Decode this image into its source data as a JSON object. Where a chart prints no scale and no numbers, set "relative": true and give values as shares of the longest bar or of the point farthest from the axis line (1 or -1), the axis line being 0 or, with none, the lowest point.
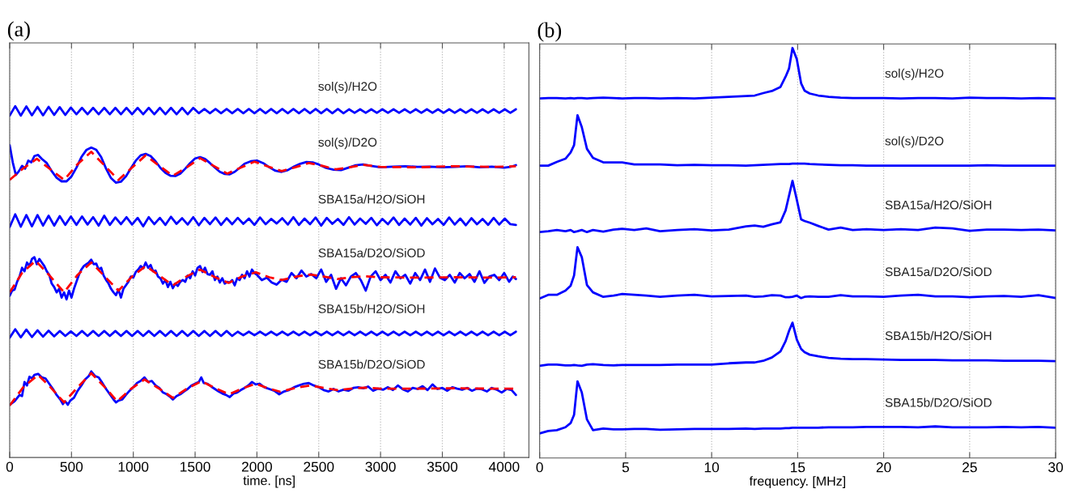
{
  "chart_data": [
    {
      "type": "line",
      "title": "(a)",
      "xlabel": "time. [ns]",
      "relative": true,
      "grid": "x",
      "tick_labels": "x",
      "xlim": [
        0,
        4200
      ],
      "xticks": [
        0,
        500,
        1000,
        1500,
        2000,
        2500,
        3000,
        3500,
        4000
      ],
      "x": [
        0,
        45,
        90,
        135,
        180,
        225,
        270,
        315,
        360,
        405,
        450,
        495,
        540,
        585,
        630,
        675,
        720,
        765,
        810,
        855,
        900,
        945,
        990,
        1035,
        1080,
        1125,
        1170,
        1215,
        1260,
        1305,
        1350,
        1395,
        1440,
        1485,
        1530,
        1575,
        1620,
        1665,
        1710,
        1755,
        1800,
        1845,
        1890,
        1935,
        1980,
        2025,
        2070,
        2115,
        2160,
        2205,
        2250,
        2295,
        2340,
        2385,
        2430,
        2475,
        2520,
        2565,
        2610,
        2655,
        2700,
        2745,
        2790,
        2835,
        2880,
        2925,
        2970,
        3015,
        3060,
        3105,
        3150,
        3195,
        3240,
        3285,
        3330,
        3375,
        3420,
        3465,
        3510,
        3555,
        3600,
        3645,
        3690,
        3735,
        3780,
        3825,
        3870,
        3915,
        3960,
        4005,
        4050,
        4095
      ],
      "series": [
        {
          "name": "sol(s)/H2O",
          "color": "#0000ff",
          "values": [
            0.973,
            1.0,
            0.973,
            0.999,
            0.974,
            0.998,
            0.974,
            0.998,
            0.975,
            0.997,
            0.975,
            0.996,
            0.977,
            0.995,
            0.977,
            0.995,
            0.977,
            0.995,
            0.977,
            0.995,
            0.977,
            0.995,
            0.977,
            0.995,
            0.977,
            0.995,
            0.977,
            0.995,
            0.977,
            0.995,
            0.977,
            0.995,
            0.977,
            0.995,
            0.98,
            0.992,
            0.98,
            0.992,
            0.98,
            0.992,
            0.98,
            0.992,
            0.98,
            0.992,
            0.98,
            0.992,
            0.98,
            0.992,
            0.98,
            0.992,
            0.98,
            0.992,
            0.98,
            0.992,
            0.98,
            0.992,
            0.98,
            0.992,
            0.98,
            0.992,
            0.98,
            0.991,
            0.981,
            0.991,
            0.981,
            0.991,
            0.981,
            0.991,
            0.981,
            0.991,
            0.981,
            0.991,
            0.981,
            0.991,
            0.981,
            0.991,
            0.981,
            0.991,
            0.981,
            0.991,
            0.981,
            0.991,
            0.981,
            0.991,
            0.981,
            0.991,
            0.981,
            0.991,
            0.981,
            0.991,
            0.981,
            0.991
          ]
        },
        {
          "name": "sol(s)/D2O",
          "color": "#0000ff",
          "x": [
            0,
            25,
            50,
            75,
            100,
            125,
            150,
            175,
            200,
            230,
            260,
            300,
            340,
            380,
            420,
            460,
            500,
            540,
            580,
            620,
            660,
            700,
            740,
            780,
            820,
            860,
            900,
            940,
            980,
            1020,
            1060,
            1100,
            1140,
            1180,
            1220,
            1260,
            1300,
            1340,
            1380,
            1420,
            1460,
            1500,
            1540,
            1580,
            1620,
            1660,
            1700,
            1740,
            1780,
            1820,
            1860,
            1900,
            1950,
            2000,
            2050,
            2100,
            2150,
            2200,
            2250,
            2300,
            2350,
            2400,
            2450,
            2500,
            2560,
            2620,
            2680,
            2740,
            2800,
            2860,
            2920,
            3000,
            3100,
            3200,
            3300,
            3400,
            3500,
            3600,
            3700,
            3800,
            3900,
            4000,
            4050,
            4095
          ],
          "values": [
            0.889,
            0.84,
            0.804,
            0.815,
            0.83,
            0.822,
            0.845,
            0.84,
            0.858,
            0.861,
            0.85,
            0.838,
            0.815,
            0.796,
            0.786,
            0.786,
            0.8,
            0.825,
            0.855,
            0.875,
            0.882,
            0.876,
            0.855,
            0.822,
            0.795,
            0.782,
            0.785,
            0.8,
            0.823,
            0.845,
            0.86,
            0.864,
            0.858,
            0.843,
            0.824,
            0.81,
            0.802,
            0.801,
            0.808,
            0.822,
            0.838,
            0.851,
            0.855,
            0.85,
            0.838,
            0.825,
            0.813,
            0.807,
            0.806,
            0.813,
            0.824,
            0.836,
            0.843,
            0.845,
            0.838,
            0.826,
            0.816,
            0.813,
            0.818,
            0.828,
            0.836,
            0.841,
            0.84,
            0.834,
            0.824,
            0.819,
            0.818,
            0.825,
            0.832,
            0.834,
            0.83,
            0.826,
            0.828,
            0.829,
            0.827,
            0.828,
            0.826,
            0.827,
            0.829,
            0.826,
            0.828,
            0.825,
            0.827,
            0.832
          ]
        },
        {
          "color": "#ff0000",
          "line_style": "dashed",
          "x": [
            0,
            100,
            220,
            330,
            440,
            550,
            660,
            770,
            880,
            990,
            1100,
            1210,
            1320,
            1430,
            1540,
            1650,
            1760,
            1870,
            1980,
            2090,
            2200,
            2310,
            2420,
            2530,
            2640,
            2750,
            2860,
            3000,
            3300,
            3600,
            3900,
            4095
          ],
          "values": [
            0.79,
            0.82,
            0.85,
            0.82,
            0.79,
            0.835,
            0.87,
            0.83,
            0.79,
            0.825,
            0.86,
            0.83,
            0.802,
            0.825,
            0.852,
            0.83,
            0.808,
            0.825,
            0.842,
            0.828,
            0.815,
            0.826,
            0.838,
            0.83,
            0.82,
            0.826,
            0.833,
            0.827,
            0.826,
            0.829,
            0.827,
            0.829
          ]
        },
        {
          "name": "SBA15a/H2O/SiOH",
          "color": "#0000ff",
          "values": [
            0.656,
            0.692,
            0.657,
            0.69,
            0.658,
            0.69,
            0.66,
            0.688,
            0.66,
            0.687,
            0.662,
            0.686,
            0.662,
            0.686,
            0.663,
            0.684,
            0.66,
            0.688,
            0.662,
            0.683,
            0.664,
            0.684,
            0.663,
            0.682,
            0.658,
            0.684,
            0.664,
            0.682,
            0.662,
            0.685,
            0.665,
            0.681,
            0.663,
            0.684,
            0.661,
            0.682,
            0.664,
            0.683,
            0.662,
            0.681,
            0.664,
            0.682,
            0.665,
            0.68,
            0.662,
            0.683,
            0.664,
            0.679,
            0.666,
            0.681,
            0.663,
            0.684,
            0.662,
            0.68,
            0.664,
            0.683,
            0.66,
            0.682,
            0.665,
            0.679,
            0.662,
            0.684,
            0.663,
            0.68,
            0.665,
            0.682,
            0.661,
            0.679,
            0.664,
            0.683,
            0.662,
            0.68,
            0.663,
            0.682,
            0.66,
            0.681,
            0.664,
            0.679,
            0.662,
            0.683,
            0.663,
            0.68,
            0.661,
            0.681,
            0.664,
            0.679,
            0.662,
            0.682,
            0.663,
            0.68,
            0.664,
            0.662
          ]
        },
        {
          "name": "SBA15a/D2O/SiOD",
          "color": "#0000ff",
          "x": [
            0,
            20,
            40,
            60,
            80,
            100,
            120,
            140,
            160,
            180,
            200,
            220,
            240,
            260,
            280,
            300,
            320,
            340,
            360,
            380,
            400,
            420,
            440,
            460,
            480,
            500,
            520,
            540,
            560,
            580,
            600,
            620,
            640,
            660,
            680,
            700,
            720,
            740,
            760,
            780,
            800,
            820,
            840,
            860,
            880,
            900,
            920,
            940,
            960,
            980,
            1000,
            1020,
            1040,
            1060,
            1080,
            1100,
            1120,
            1140,
            1160,
            1180,
            1200,
            1220,
            1240,
            1260,
            1280,
            1300,
            1320,
            1340,
            1360,
            1380,
            1400,
            1420,
            1440,
            1460,
            1480,
            1500,
            1520,
            1540,
            1560,
            1580,
            1600,
            1620,
            1640,
            1660,
            1680,
            1700,
            1720,
            1740,
            1760,
            1780,
            1800,
            1820,
            1840,
            1860,
            1880,
            1900,
            1920,
            1940,
            1960,
            1980,
            2000,
            2040,
            2080,
            2120,
            2160,
            2200,
            2240,
            2280,
            2320,
            2360,
            2400,
            2440,
            2480,
            2520,
            2560,
            2600,
            2640,
            2680,
            2720,
            2760,
            2800,
            2840,
            2880,
            2920,
            2960,
            3000,
            3040,
            3080,
            3120,
            3160,
            3200,
            3240,
            3280,
            3320,
            3360,
            3400,
            3440,
            3480,
            3520,
            3560,
            3600,
            3640,
            3680,
            3720,
            3760,
            3800,
            3840,
            3880,
            3920,
            3960,
            4000,
            4040,
            4070,
            4095
          ],
          "values": [
            0.46,
            0.475,
            0.478,
            0.5,
            0.515,
            0.54,
            0.53,
            0.555,
            0.545,
            0.565,
            0.57,
            0.55,
            0.565,
            0.555,
            0.545,
            0.53,
            0.52,
            0.495,
            0.485,
            0.47,
            0.48,
            0.455,
            0.47,
            0.45,
            0.475,
            0.455,
            0.48,
            0.5,
            0.52,
            0.535,
            0.545,
            0.55,
            0.555,
            0.563,
            0.55,
            0.552,
            0.535,
            0.54,
            0.518,
            0.505,
            0.495,
            0.48,
            0.47,
            0.462,
            0.478,
            0.455,
            0.48,
            0.49,
            0.5,
            0.515,
            0.512,
            0.528,
            0.535,
            0.545,
            0.538,
            0.555,
            0.54,
            0.548,
            0.53,
            0.532,
            0.515,
            0.51,
            0.495,
            0.505,
            0.485,
            0.5,
            0.482,
            0.495,
            0.488,
            0.5,
            0.505,
            0.5,
            0.518,
            0.51,
            0.53,
            0.518,
            0.54,
            0.545,
            0.528,
            0.54,
            0.522,
            0.52,
            0.53,
            0.505,
            0.515,
            0.498,
            0.51,
            0.495,
            0.5,
            0.498,
            0.505,
            0.49,
            0.51,
            0.505,
            0.52,
            0.51,
            0.53,
            0.515,
            0.535,
            0.525,
            0.52,
            0.505,
            0.512,
            0.498,
            0.492,
            0.506,
            0.5,
            0.525,
            0.51,
            0.532,
            0.515,
            0.522,
            0.51,
            0.535,
            0.5,
            0.52,
            0.48,
            0.51,
            0.49,
            0.515,
            0.525,
            0.505,
            0.475,
            0.515,
            0.53,
            0.505,
            0.52,
            0.498,
            0.53,
            0.51,
            0.52,
            0.495,
            0.525,
            0.505,
            0.535,
            0.5,
            0.538,
            0.512,
            0.505,
            0.52,
            0.498,
            0.525,
            0.51,
            0.522,
            0.5,
            0.53,
            0.497,
            0.515,
            0.52,
            0.505,
            0.525,
            0.5,
            0.515,
            0.508
          ]
        },
        {
          "color": "#ff0000",
          "line_style": "dashed",
          "x": [
            0,
            100,
            210,
            330,
            440,
            550,
            660,
            770,
            880,
            990,
            1100,
            1210,
            1320,
            1430,
            1540,
            1650,
            1770,
            1880,
            1990,
            2100,
            2200,
            2320,
            2430,
            2540,
            2650,
            2760,
            2870,
            3000,
            3300,
            3600,
            3900,
            4095
          ],
          "values": [
            0.47,
            0.525,
            0.56,
            0.515,
            0.47,
            0.52,
            0.555,
            0.515,
            0.475,
            0.515,
            0.545,
            0.518,
            0.49,
            0.515,
            0.535,
            0.515,
            0.497,
            0.515,
            0.527,
            0.513,
            0.505,
            0.515,
            0.521,
            0.515,
            0.508,
            0.513,
            0.516,
            0.513,
            0.512,
            0.513,
            0.512,
            0.513
          ]
        },
        {
          "name": "SBA15b/H2O/SiOH",
          "color": "#0000ff",
          "values": [
            0.341,
            0.365,
            0.342,
            0.364,
            0.343,
            0.362,
            0.344,
            0.361,
            0.345,
            0.36,
            0.346,
            0.359,
            0.346,
            0.36,
            0.346,
            0.36,
            0.346,
            0.36,
            0.346,
            0.36,
            0.346,
            0.36,
            0.346,
            0.36,
            0.346,
            0.36,
            0.346,
            0.36,
            0.346,
            0.36,
            0.346,
            0.36,
            0.346,
            0.36,
            0.346,
            0.36,
            0.346,
            0.36,
            0.346,
            0.36,
            0.346,
            0.358,
            0.348,
            0.358,
            0.348,
            0.358,
            0.348,
            0.358,
            0.348,
            0.358,
            0.348,
            0.358,
            0.348,
            0.358,
            0.348,
            0.358,
            0.348,
            0.358,
            0.348,
            0.358,
            0.348,
            0.358,
            0.348,
            0.358,
            0.348,
            0.358,
            0.348,
            0.358,
            0.348,
            0.358,
            0.348,
            0.358,
            0.348,
            0.358,
            0.348,
            0.358,
            0.348,
            0.358,
            0.348,
            0.358,
            0.348,
            0.358,
            0.348,
            0.358,
            0.348,
            0.358,
            0.348,
            0.358,
            0.348,
            0.358,
            0.348,
            0.358
          ]
        },
        {
          "name": "SBA15b/D2O/SiOD",
          "color": "#0000ff",
          "x": [
            0,
            40,
            80,
            100,
            120,
            140,
            160,
            180,
            200,
            230,
            260,
            290,
            320,
            350,
            380,
            410,
            430,
            450,
            470,
            490,
            520,
            550,
            580,
            610,
            640,
            660,
            690,
            720,
            750,
            780,
            810,
            840,
            860,
            880,
            910,
            940,
            970,
            1000,
            1030,
            1060,
            1090,
            1120,
            1150,
            1180,
            1210,
            1240,
            1270,
            1300,
            1320,
            1350,
            1380,
            1410,
            1440,
            1470,
            1500,
            1530,
            1550,
            1570,
            1600,
            1630,
            1660,
            1690,
            1720,
            1750,
            1780,
            1810,
            1840,
            1870,
            1900,
            1930,
            1960,
            1990,
            2020,
            2060,
            2100,
            2140,
            2180,
            2220,
            2260,
            2300,
            2340,
            2380,
            2420,
            2460,
            2500,
            2540,
            2580,
            2620,
            2660,
            2700,
            2740,
            2780,
            2820,
            2860,
            2900,
            2940,
            2980,
            3020,
            3060,
            3100,
            3140,
            3180,
            3220,
            3260,
            3300,
            3340,
            3380,
            3420,
            3460,
            3500,
            3540,
            3580,
            3620,
            3660,
            3700,
            3740,
            3780,
            3820,
            3860,
            3900,
            3940,
            3980,
            4020,
            4060,
            4095
          ],
          "values": [
            0.15,
            0.16,
            0.178,
            0.175,
            0.215,
            0.205,
            0.23,
            0.225,
            0.235,
            0.238,
            0.228,
            0.225,
            0.21,
            0.195,
            0.178,
            0.165,
            0.152,
            0.16,
            0.15,
            0.162,
            0.17,
            0.19,
            0.205,
            0.222,
            0.232,
            0.245,
            0.232,
            0.228,
            0.212,
            0.195,
            0.18,
            0.165,
            0.157,
            0.162,
            0.165,
            0.178,
            0.19,
            0.2,
            0.212,
            0.218,
            0.228,
            0.215,
            0.218,
            0.205,
            0.198,
            0.185,
            0.18,
            0.172,
            0.165,
            0.175,
            0.18,
            0.188,
            0.195,
            0.205,
            0.21,
            0.215,
            0.228,
            0.212,
            0.21,
            0.202,
            0.195,
            0.188,
            0.182,
            0.178,
            0.172,
            0.182,
            0.185,
            0.192,
            0.198,
            0.205,
            0.215,
            0.208,
            0.21,
            0.2,
            0.195,
            0.19,
            0.18,
            0.188,
            0.192,
            0.2,
            0.205,
            0.21,
            0.212,
            0.205,
            0.2,
            0.192,
            0.188,
            0.195,
            0.188,
            0.193,
            0.19,
            0.198,
            0.2,
            0.197,
            0.202,
            0.19,
            0.196,
            0.193,
            0.2,
            0.192,
            0.205,
            0.194,
            0.188,
            0.198,
            0.195,
            0.203,
            0.192,
            0.208,
            0.195,
            0.198,
            0.19,
            0.2,
            0.196,
            0.193,
            0.198,
            0.19,
            0.196,
            0.194,
            0.188,
            0.198,
            0.193,
            0.185,
            0.195,
            0.192,
            0.178
          ]
        },
        {
          "color": "#ff0000",
          "line_style": "dashed",
          "x": [
            0,
            110,
            230,
            330,
            440,
            550,
            660,
            770,
            870,
            980,
            1090,
            1200,
            1320,
            1430,
            1550,
            1660,
            1775,
            1880,
            1990,
            2090,
            2190,
            2310,
            2430,
            2540,
            2650,
            2760,
            2870,
            3000,
            3300,
            3600,
            3900,
            4095
          ],
          "values": [
            0.148,
            0.2,
            0.235,
            0.2,
            0.157,
            0.2,
            0.24,
            0.2,
            0.16,
            0.195,
            0.222,
            0.198,
            0.17,
            0.195,
            0.217,
            0.198,
            0.18,
            0.196,
            0.21,
            0.197,
            0.187,
            0.198,
            0.205,
            0.198,
            0.192,
            0.196,
            0.199,
            0.196,
            0.196,
            0.197,
            0.196,
            0.196
          ]
        }
      ]
    },
    {
      "type": "line",
      "title": "(b)",
      "xlabel": "frequency. [MHz]",
      "relative": true,
      "grid": "x",
      "tick_labels": "x",
      "xlim": [
        0,
        30
      ],
      "xticks": [
        0,
        5,
        10,
        15,
        20,
        25,
        30
      ],
      "x": [
        0,
        0.5,
        1.0,
        1.5,
        1.8,
        2.0,
        2.2,
        2.45,
        2.75,
        3.1,
        3.7,
        4.3,
        4.8,
        5.5,
        6.2,
        7,
        8,
        9,
        10,
        11,
        12,
        12.5,
        13,
        13.5,
        14,
        14.3,
        14.5,
        14.7,
        14.95,
        15.2,
        15.4,
        15.7,
        16.2,
        16.8,
        17.5,
        18.2,
        19,
        20,
        21,
        22,
        23,
        24,
        25,
        26,
        27,
        28,
        29,
        30
      ],
      "series": [
        {
          "name": "sol(s)/H2O",
          "color": "#0000ff",
          "values": [
            0.877,
            0.878,
            0.878,
            0.877,
            0.878,
            0.877,
            0.878,
            0.878,
            0.877,
            0.878,
            0.879,
            0.878,
            0.877,
            0.878,
            0.878,
            0.877,
            0.878,
            0.877,
            0.879,
            0.881,
            0.883,
            0.884,
            0.89,
            0.895,
            0.905,
            0.93,
            0.95,
            1.0,
            0.973,
            0.914,
            0.896,
            0.889,
            0.884,
            0.881,
            0.879,
            0.878,
            0.878,
            0.878,
            0.877,
            0.878,
            0.878,
            0.877,
            0.879,
            0.878,
            0.878,
            0.877,
            0.878,
            0.877
          ]
        },
        {
          "name": "sol(s)/D2O",
          "color": "#0000ff",
          "values": [
            0.713,
            0.713,
            0.722,
            0.73,
            0.745,
            0.763,
            0.836,
            0.807,
            0.754,
            0.732,
            0.721,
            0.721,
            0.721,
            0.716,
            0.716,
            0.716,
            0.714,
            0.715,
            0.714,
            0.714,
            0.713,
            0.714,
            0.715,
            0.716,
            0.717,
            0.717,
            0.717,
            0.718,
            0.718,
            0.718,
            0.718,
            0.717,
            0.716,
            0.715,
            0.714,
            0.714,
            0.713,
            0.713,
            0.713,
            0.713,
            0.713,
            0.713,
            0.713,
            0.714,
            0.713,
            0.713,
            0.713,
            0.713
          ]
        },
        {
          "name": "SBA15a/H2O/SiOH",
          "color": "#0000ff",
          "values": [
            0.551,
            0.553,
            0.556,
            0.553,
            0.556,
            0.551,
            0.553,
            0.556,
            0.551,
            0.556,
            0.552,
            0.557,
            0.559,
            0.556,
            0.56,
            0.553,
            0.556,
            0.558,
            0.555,
            0.557,
            0.565,
            0.567,
            0.564,
            0.57,
            0.575,
            0.604,
            0.64,
            0.676,
            0.63,
            0.582,
            0.578,
            0.574,
            0.566,
            0.557,
            0.562,
            0.556,
            0.558,
            0.556,
            0.558,
            0.556,
            0.562,
            0.56,
            0.554,
            0.557,
            0.557,
            0.556,
            0.557,
            0.555
          ]
        },
        {
          "name": "SBA15a/D2O/SiOD",
          "color": "#0000ff",
          "values": [
            0.389,
            0.398,
            0.398,
            0.408,
            0.42,
            0.445,
            0.514,
            0.49,
            0.422,
            0.404,
            0.393,
            0.396,
            0.4,
            0.398,
            0.396,
            0.393,
            0.396,
            0.398,
            0.394,
            0.395,
            0.396,
            0.393,
            0.394,
            0.397,
            0.396,
            0.392,
            0.392,
            0.393,
            0.396,
            0.39,
            0.393,
            0.394,
            0.393,
            0.393,
            0.397,
            0.394,
            0.394,
            0.393,
            0.396,
            0.398,
            0.394,
            0.394,
            0.392,
            0.394,
            0.395,
            0.393,
            0.397,
            0.39
          ]
        },
        {
          "name": "SBA15b/H2O/SiOH",
          "color": "#0000ff",
          "values": [
            0.225,
            0.228,
            0.228,
            0.226,
            0.226,
            0.227,
            0.226,
            0.225,
            0.228,
            0.229,
            0.227,
            0.226,
            0.227,
            0.227,
            0.227,
            0.227,
            0.228,
            0.228,
            0.228,
            0.231,
            0.233,
            0.233,
            0.237,
            0.245,
            0.26,
            0.285,
            0.31,
            0.33,
            0.289,
            0.266,
            0.258,
            0.252,
            0.248,
            0.244,
            0.242,
            0.241,
            0.241,
            0.24,
            0.239,
            0.239,
            0.239,
            0.238,
            0.238,
            0.238,
            0.237,
            0.237,
            0.237,
            0.236
          ]
        },
        {
          "name": "SBA15b/D2O/SiOD",
          "color": "#0000ff",
          "values": [
            0.06,
            0.066,
            0.068,
            0.075,
            0.085,
            0.105,
            0.187,
            0.16,
            0.094,
            0.068,
            0.072,
            0.07,
            0.07,
            0.071,
            0.071,
            0.069,
            0.07,
            0.071,
            0.071,
            0.071,
            0.072,
            0.071,
            0.072,
            0.072,
            0.072,
            0.073,
            0.073,
            0.074,
            0.074,
            0.074,
            0.074,
            0.074,
            0.074,
            0.075,
            0.075,
            0.075,
            0.076,
            0.076,
            0.076,
            0.075,
            0.077,
            0.075,
            0.075,
            0.075,
            0.076,
            0.075,
            0.076,
            0.074
          ]
        }
      ]
    }
  ]
}
